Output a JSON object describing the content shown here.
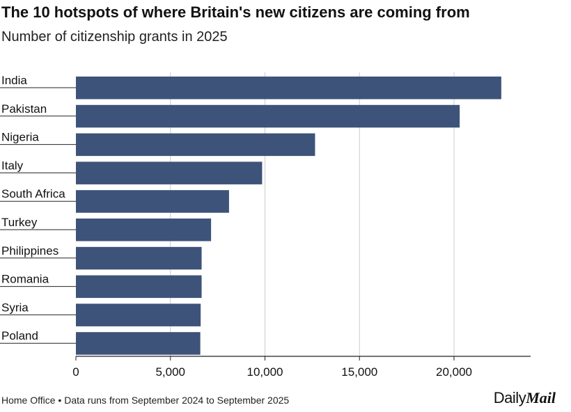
{
  "chart_data": {
    "type": "bar",
    "orientation": "horizontal",
    "title": "The 10 hotspots of where Britain's new citizens are coming from",
    "subtitle": "Number of citizenship grants in 2025",
    "categories": [
      "India",
      "Pakistan",
      "Nigeria",
      "Italy",
      "South Africa",
      "Turkey",
      "Philippines",
      "Romania",
      "Syria",
      "Poland"
    ],
    "values": [
      22500,
      20300,
      12650,
      9850,
      8100,
      7150,
      6650,
      6650,
      6600,
      6580
    ],
    "xlim": [
      0,
      24000
    ],
    "xticks": [
      0,
      5000,
      10000,
      15000,
      20000
    ],
    "xtick_labels": [
      "0",
      "5,000",
      "10,000",
      "15,000",
      "20,000"
    ],
    "xlabel": "",
    "ylabel": "",
    "grid": "vertical",
    "bar_color": "#3d5379",
    "grid_color": "#cccccc",
    "axis_color": "#222222"
  },
  "footer": {
    "source": "Home Office • Data runs from September 2024 to September 2025"
  },
  "brand": {
    "part1": "Daily",
    "part2": "Mail"
  }
}
